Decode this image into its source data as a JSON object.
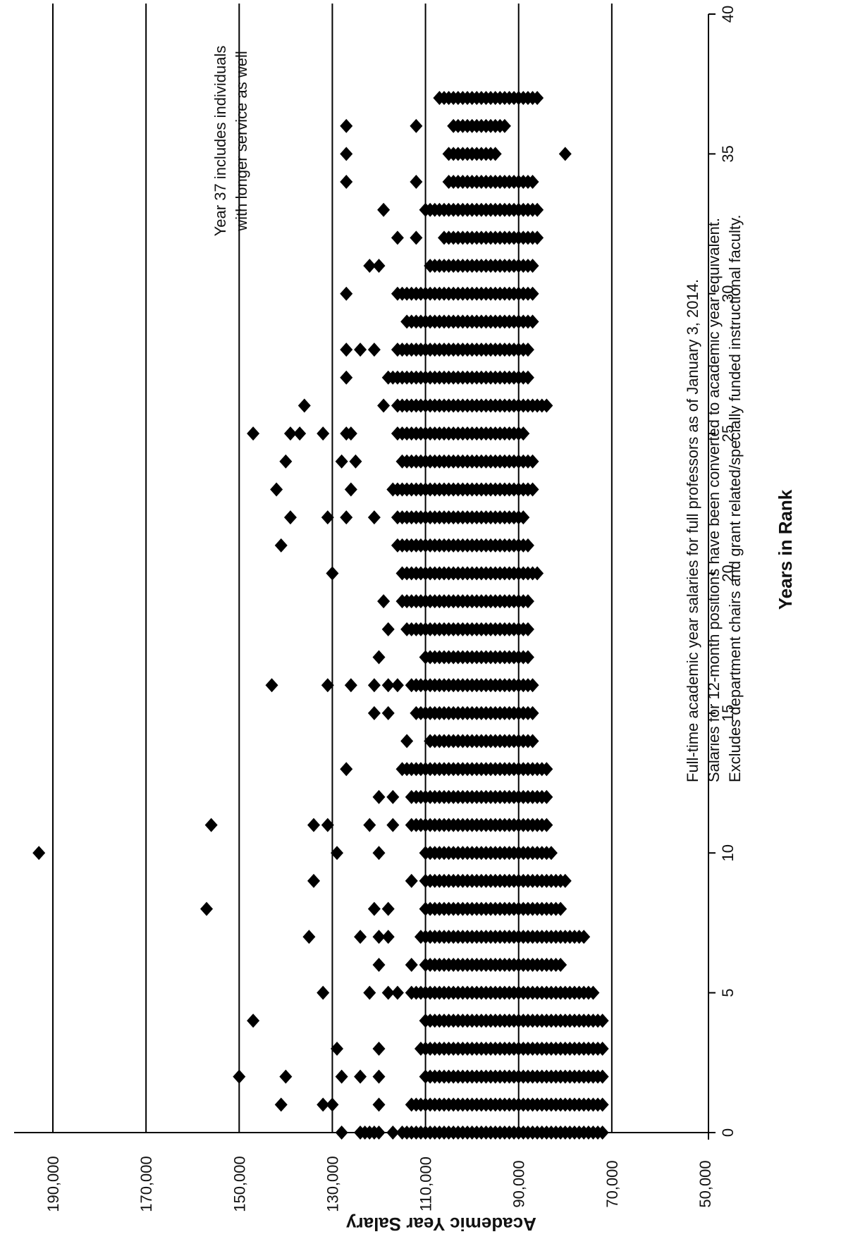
{
  "chart_data": {
    "type": "scatter",
    "title": "",
    "xlabel": "Years in Rank",
    "ylabel": "Academic Year Salary",
    "xlim": [
      0,
      40
    ],
    "ylim": [
      50000,
      190000
    ],
    "x_ticks": [
      "0",
      "5",
      "10",
      "15",
      "20",
      "25",
      "30",
      "35",
      "40"
    ],
    "y_ticks": [
      "50,000",
      "70,000",
      "90,000",
      "110,000",
      "130,000",
      "150,000",
      "170,000",
      "190,000"
    ],
    "y_gridlines": [
      70000,
      90000,
      110000,
      130000,
      150000,
      170000,
      190000
    ],
    "grid": "horizontal",
    "marker": "diamond",
    "color": "#000000",
    "annotations": [
      {
        "id": "year37",
        "lines": [
          "Year 37 includes individuals",
          "with longer service as well"
        ]
      },
      {
        "id": "footnote",
        "lines": [
          "Full-time academic year salaries for full professors as of January 3, 2014.",
          "Salaries for 12-month positions have been converted to academic year equivalent.",
          "Excludes department chairs and grant related/specially funded instructional faculty."
        ]
      }
    ],
    "columns": [
      {
        "x": 0,
        "range": [
          72000,
          115000
        ],
        "extra": [
          117000,
          120000,
          121000,
          122000,
          123000,
          124000,
          128000
        ]
      },
      {
        "x": 1,
        "range": [
          72000,
          112000
        ],
        "extra": [
          113000,
          120000,
          130000,
          132000,
          141000
        ]
      },
      {
        "x": 2,
        "range": [
          72000,
          110000
        ],
        "extra": [
          120000,
          124000,
          128000,
          140000,
          150000
        ]
      },
      {
        "x": 3,
        "range": [
          72000,
          111000
        ],
        "extra": [
          120000,
          129000
        ]
      },
      {
        "x": 4,
        "range": [
          72000,
          110000
        ],
        "extra": [
          147000
        ]
      },
      {
        "x": 5,
        "range": [
          74000,
          113000
        ],
        "extra": [
          116000,
          118000,
          122000,
          132000
        ]
      },
      {
        "x": 6,
        "range": [
          81000,
          110000
        ],
        "extra": [
          113000,
          120000
        ]
      },
      {
        "x": 7,
        "range": [
          76000,
          111000
        ],
        "extra": [
          118000,
          120000,
          124000,
          135000
        ]
      },
      {
        "x": 8,
        "range": [
          81000,
          110000
        ],
        "extra": [
          118000,
          121000,
          157000
        ]
      },
      {
        "x": 9,
        "range": [
          80000,
          110000
        ],
        "extra": [
          113000,
          134000
        ]
      },
      {
        "x": 10,
        "range": [
          83000,
          110000
        ],
        "extra": [
          120000,
          129000,
          193000
        ]
      },
      {
        "x": 11,
        "range": [
          84000,
          113000
        ],
        "extra": [
          117000,
          122000,
          131000,
          134000,
          156000
        ]
      },
      {
        "x": 12,
        "range": [
          84000,
          113000
        ],
        "extra": [
          117000,
          120000
        ]
      },
      {
        "x": 13,
        "range": [
          84000,
          115000
        ],
        "extra": [
          127000
        ]
      },
      {
        "x": 14,
        "range": [
          87000,
          109000
        ],
        "extra": [
          114000
        ]
      },
      {
        "x": 15,
        "range": [
          87000,
          112000
        ],
        "extra": [
          118000,
          121000
        ]
      },
      {
        "x": 16,
        "range": [
          87000,
          113000
        ],
        "extra": [
          116000,
          118000,
          121000,
          126000,
          131000,
          143000
        ]
      },
      {
        "x": 17,
        "range": [
          88000,
          110000
        ],
        "extra": [
          120000
        ]
      },
      {
        "x": 18,
        "range": [
          88000,
          114000
        ],
        "extra": [
          118000
        ]
      },
      {
        "x": 19,
        "range": [
          88000,
          115000
        ],
        "extra": [
          119000
        ]
      },
      {
        "x": 20,
        "range": [
          86000,
          115000
        ],
        "extra": [
          130000
        ]
      },
      {
        "x": 21,
        "range": [
          88000,
          116000
        ],
        "extra": [
          141000
        ]
      },
      {
        "x": 22,
        "range": [
          89000,
          116000
        ],
        "extra": [
          121000,
          127000,
          131000,
          139000
        ]
      },
      {
        "x": 23,
        "range": [
          87000,
          117000
        ],
        "extra": [
          126000,
          142000
        ]
      },
      {
        "x": 24,
        "range": [
          87000,
          115000
        ],
        "extra": [
          125000,
          128000,
          140000
        ]
      },
      {
        "x": 25,
        "range": [
          89000,
          116000
        ],
        "extra": [
          126000,
          127000,
          132000,
          137000,
          139000,
          147000
        ]
      },
      {
        "x": 26,
        "range": [
          84000,
          116000
        ],
        "extra": [
          119000,
          136000
        ]
      },
      {
        "x": 27,
        "range": [
          88000,
          118000
        ],
        "extra": [
          127000
        ]
      },
      {
        "x": 28,
        "range": [
          88000,
          116000
        ],
        "extra": [
          121000,
          124000,
          127000
        ]
      },
      {
        "x": 29,
        "range": [
          87000,
          114000
        ]
      },
      {
        "x": 30,
        "range": [
          87000,
          116000
        ],
        "extra": [
          127000
        ]
      },
      {
        "x": 31,
        "range": [
          87000,
          109000
        ],
        "extra": [
          120000,
          122000
        ]
      },
      {
        "x": 32,
        "range": [
          86000,
          106000
        ],
        "extra": [
          112000,
          116000
        ]
      },
      {
        "x": 33,
        "range": [
          86000,
          110000
        ],
        "extra": [
          119000
        ]
      },
      {
        "x": 34,
        "range": [
          87000,
          105000
        ],
        "extra": [
          112000,
          127000
        ]
      },
      {
        "x": 35,
        "range": [
          95000,
          105000
        ],
        "extra": [
          80000,
          127000
        ]
      },
      {
        "x": 36,
        "range": [
          93000,
          104000
        ],
        "extra": [
          112000,
          127000
        ]
      },
      {
        "x": 37,
        "range": [
          86000,
          107000
        ]
      }
    ]
  }
}
